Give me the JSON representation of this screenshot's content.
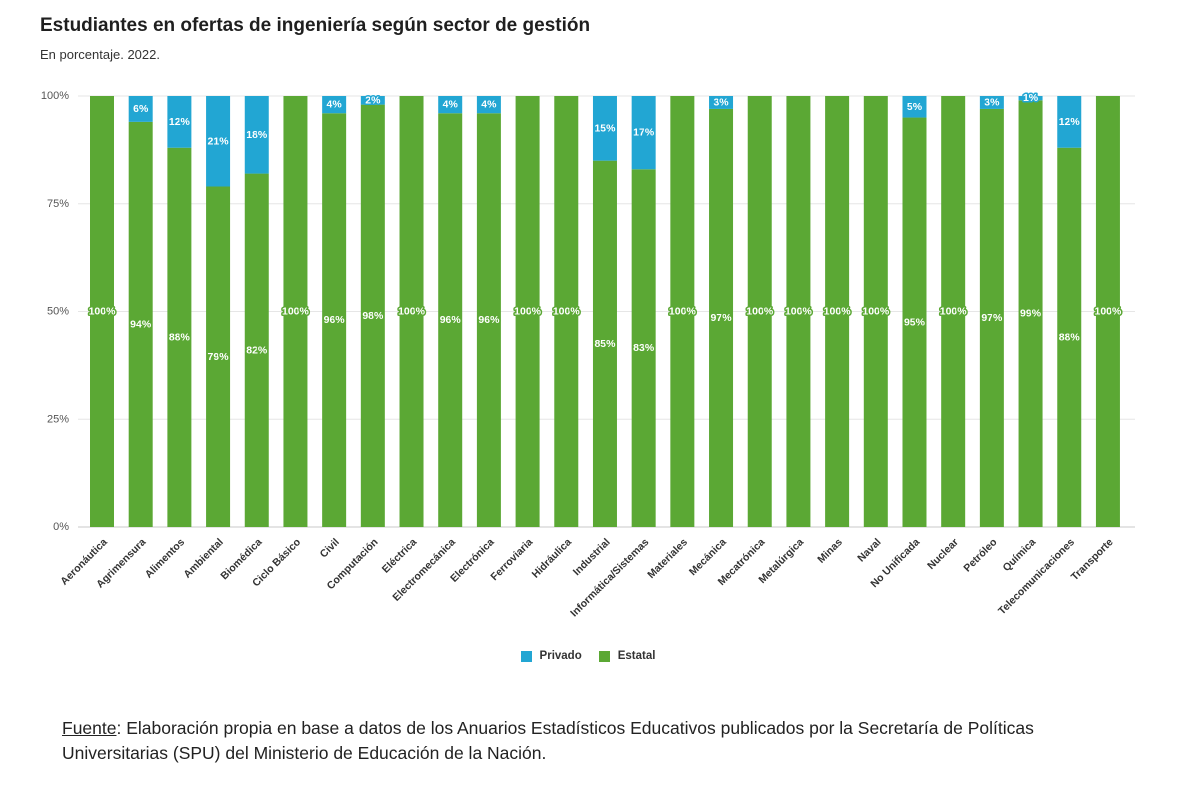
{
  "chart_data": {
    "type": "bar",
    "stacked": true,
    "title": "Estudiantes en ofertas de ingeniería según sector de gestión",
    "subtitle": "En porcentaje. 2022.",
    "ylim": [
      0,
      100
    ],
    "yticks": [
      0,
      25,
      50,
      75,
      100
    ],
    "value_suffix": "%",
    "grid": true,
    "legend_position": "bottom",
    "categories": [
      "Aeronáutica",
      "Agrimensura",
      "Alimentos",
      "Ambiental",
      "Biomédica",
      "Ciclo Básico",
      "Civil",
      "Computación",
      "Eléctrica",
      "Electromecánica",
      "Electrónica",
      "Ferroviaria",
      "Hidráulica",
      "Industrial",
      "Informática/Sistemas",
      "Materiales",
      "Mecánica",
      "Mecatrónica",
      "Metalúrgica",
      "Minas",
      "Naval",
      "No Unificada",
      "Nuclear",
      "Petróleo",
      "Química",
      "Telecomunicaciones",
      "Transporte"
    ],
    "series": [
      {
        "name": "Privado",
        "color": "#22a6d3",
        "values": [
          0,
          6,
          12,
          21,
          18,
          0,
          4,
          2,
          0,
          4,
          4,
          0,
          0,
          15,
          17,
          0,
          3,
          0,
          0,
          0,
          0,
          5,
          0,
          3,
          1,
          12,
          0
        ]
      },
      {
        "name": "Estatal",
        "color": "#5ba834",
        "values": [
          100,
          94,
          88,
          79,
          82,
          100,
          96,
          98,
          100,
          96,
          96,
          100,
          100,
          85,
          83,
          100,
          97,
          100,
          100,
          100,
          100,
          95,
          100,
          97,
          99,
          88,
          100
        ]
      }
    ]
  },
  "source": {
    "label": "Fuente",
    "text": ": Elaboración propia en base a datos de los Anuarios Estadísticos Educativos publicados por la Secretaría de Políticas Universitarias (SPU) del Ministerio de Educación de la Nación."
  }
}
